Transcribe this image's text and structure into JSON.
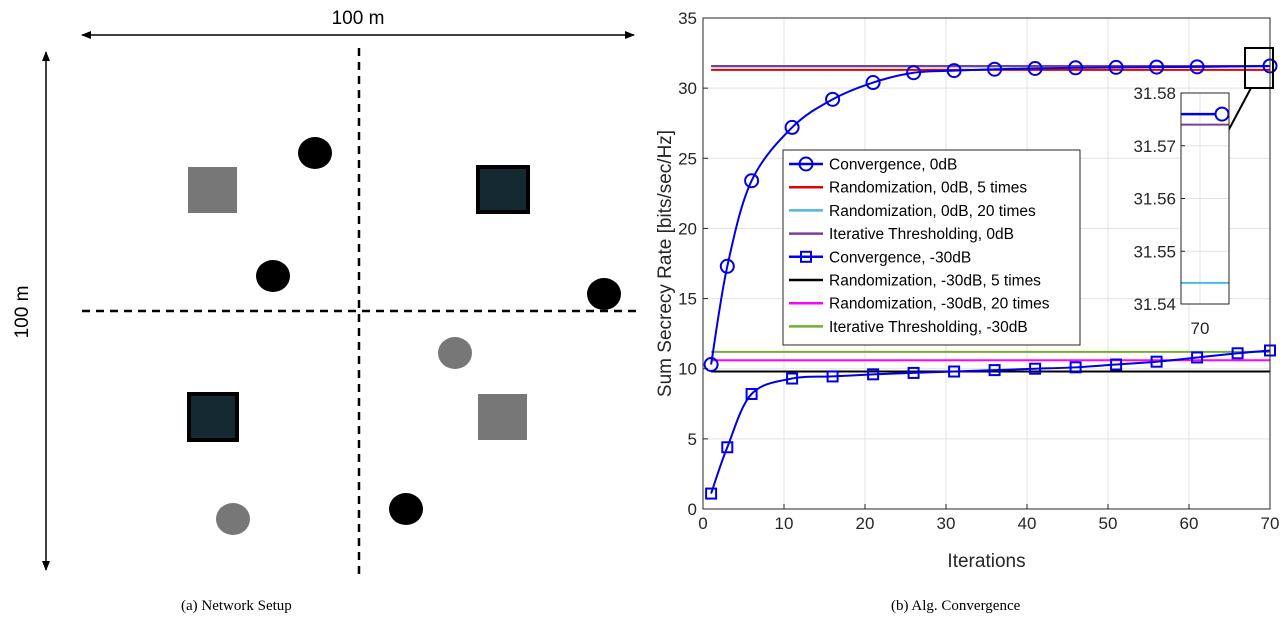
{
  "figure": {
    "caption_a": "(a) Network Setup",
    "caption_b": "(b) Alg. Convergence"
  },
  "network": {
    "width_label": "100 m",
    "height_label": "100 m",
    "colors": {
      "black": "#000000",
      "gray": "#777777",
      "dark_teal": "#142a30"
    }
  },
  "chart_data": {
    "type": "line",
    "xlabel": "Iterations",
    "ylabel": "Sum Secrecy Rate [bits/sec/Hz]",
    "xlim": [
      0,
      70
    ],
    "ylim": [
      0,
      35
    ],
    "xticks": [
      0,
      10,
      20,
      30,
      40,
      50,
      60,
      70
    ],
    "yticks": [
      0,
      5,
      10,
      15,
      20,
      25,
      30,
      35
    ],
    "grid": true,
    "legend_position": "center-left",
    "series": [
      {
        "name": "Convergence, 0dB",
        "color": "#0000e6",
        "marker": "circle",
        "x": [
          1,
          3,
          6,
          11,
          16,
          21,
          26,
          31,
          36,
          41,
          46,
          51,
          56,
          61,
          70
        ],
        "y": [
          10.3,
          17.3,
          23.4,
          27.2,
          29.2,
          30.4,
          31.1,
          31.25,
          31.35,
          31.4,
          31.45,
          31.48,
          31.5,
          31.52,
          31.58
        ]
      },
      {
        "name": "Randomization, 0dB, 5 times",
        "color": "#e60000",
        "marker": "none",
        "x": [
          1,
          70
        ],
        "y": [
          31.3,
          31.3
        ]
      },
      {
        "name": "Randomization, 0dB, 20 times",
        "color": "#4db8e6",
        "marker": "none",
        "x": [
          1,
          70
        ],
        "y": [
          31.544,
          31.544
        ]
      },
      {
        "name": "Iterative Thresholding, 0dB",
        "color": "#7b3f99",
        "marker": "none",
        "x": [
          1,
          70
        ],
        "y": [
          31.574,
          31.574
        ]
      },
      {
        "name": "Convergence, -30dB",
        "color": "#0000e6",
        "marker": "square",
        "x": [
          1,
          3,
          6,
          11,
          16,
          21,
          26,
          31,
          36,
          41,
          46,
          51,
          56,
          61,
          66,
          70
        ],
        "y": [
          1.1,
          4.4,
          8.2,
          9.3,
          9.45,
          9.6,
          9.7,
          9.8,
          9.9,
          10.0,
          10.1,
          10.3,
          10.5,
          10.8,
          11.1,
          11.3
        ]
      },
      {
        "name": "Randomization, -30dB, 5 times",
        "color": "#000000",
        "marker": "none",
        "x": [
          1,
          70
        ],
        "y": [
          9.8,
          9.8
        ]
      },
      {
        "name": "Randomization, -30dB, 20 times",
        "color": "#ff00ff",
        "marker": "none",
        "x": [
          1,
          70
        ],
        "y": [
          10.6,
          10.6
        ]
      },
      {
        "name": "Iterative Thresholding, -30dB",
        "color": "#77ac30",
        "marker": "none",
        "x": [
          1,
          70
        ],
        "y": [
          11.2,
          11.2
        ]
      }
    ],
    "inset": {
      "ylim": [
        31.54,
        31.58
      ],
      "yticks": [
        31.54,
        31.55,
        31.56,
        31.57,
        31.58
      ],
      "xticks": [
        70
      ],
      "values": {
        "convergence_0dB": 31.576,
        "iterative_thresholding_0dB": 31.574,
        "randomization_0dB_20": 31.544
      }
    }
  }
}
